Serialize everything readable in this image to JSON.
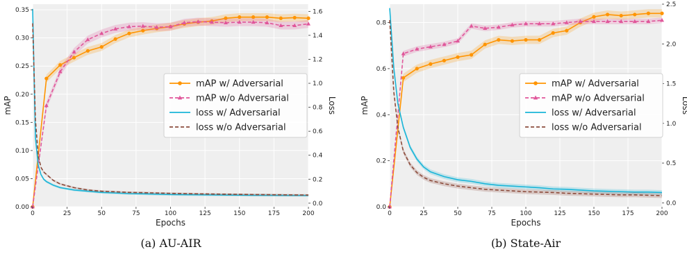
{
  "chart_data": [
    {
      "type": "line",
      "caption": "(a) AU-AIR",
      "xlabel": "Epochs",
      "ylabel": "mAP",
      "y2label": "Loss",
      "xlim": [
        0,
        200
      ],
      "ylim": [
        0,
        0.36
      ],
      "y2lim": [
        -0.03,
        1.66
      ],
      "xticks": [
        0,
        25,
        50,
        75,
        100,
        125,
        150,
        175,
        200
      ],
      "yticks": [
        0.0,
        0.05,
        0.1,
        0.15,
        0.2,
        0.25,
        0.3,
        0.35
      ],
      "ytick_labels": [
        "0.00",
        "0.05",
        "0.10",
        "0.15",
        "0.20",
        "0.25",
        "0.30",
        "0.35"
      ],
      "y2ticks": [
        0.0,
        0.2,
        0.4,
        0.6,
        0.8,
        1.0,
        1.2,
        1.4,
        1.6
      ],
      "y2tick_labels": [
        "0.0",
        "0.2",
        "0.4",
        "0.6",
        "0.8",
        "1.0",
        "1.2",
        "1.4",
        "1.6"
      ],
      "grid": true,
      "legend_position": "center-right",
      "series": [
        {
          "name": "mAP w/ Adversarial",
          "axis": "left",
          "color": "#ff9400",
          "marker": "circle",
          "style": "solid",
          "x": [
            0,
            10,
            20,
            30,
            40,
            50,
            60,
            70,
            80,
            90,
            100,
            110,
            120,
            130,
            140,
            150,
            160,
            170,
            180,
            190,
            200
          ],
          "y": [
            0.0,
            0.228,
            0.252,
            0.265,
            0.277,
            0.284,
            0.298,
            0.308,
            0.313,
            0.317,
            0.32,
            0.325,
            0.328,
            0.33,
            0.335,
            0.337,
            0.337,
            0.337,
            0.335,
            0.336,
            0.335
          ],
          "band": 0.007
        },
        {
          "name": "mAP w/o Adversarial",
          "axis": "left",
          "color": "#e0569a",
          "marker": "triangle",
          "style": "dashed",
          "x": [
            0,
            10,
            20,
            30,
            40,
            50,
            60,
            70,
            80,
            90,
            100,
            110,
            120,
            130,
            140,
            150,
            160,
            170,
            180,
            190,
            200
          ],
          "y": [
            0.0,
            0.18,
            0.24,
            0.275,
            0.297,
            0.308,
            0.316,
            0.32,
            0.321,
            0.319,
            0.32,
            0.327,
            0.329,
            0.328,
            0.327,
            0.328,
            0.328,
            0.327,
            0.322,
            0.322,
            0.325
          ],
          "band": 0.007
        },
        {
          "name": "loss w/ Adversarial",
          "axis": "right",
          "color": "#1ab5d8",
          "marker": "none",
          "style": "solid",
          "x": [
            0,
            2,
            4,
            6,
            8,
            10,
            15,
            20,
            30,
            40,
            50,
            60,
            70,
            80,
            90,
            100,
            120,
            140,
            160,
            180,
            200
          ],
          "y": [
            1.62,
            0.55,
            0.32,
            0.24,
            0.2,
            0.18,
            0.15,
            0.13,
            0.11,
            0.1,
            0.09,
            0.085,
            0.08,
            0.078,
            0.075,
            0.072,
            0.07,
            0.068,
            0.066,
            0.065,
            0.064
          ],
          "band": 0.01
        },
        {
          "name": "loss w/o Adversarial",
          "axis": "right",
          "color": "#8b4b3b",
          "marker": "none",
          "style": "dashed",
          "x": [
            0,
            2,
            4,
            6,
            8,
            10,
            15,
            20,
            30,
            40,
            50,
            60,
            70,
            80,
            90,
            100,
            120,
            140,
            160,
            180,
            200
          ],
          "y": [
            1.5,
            0.7,
            0.4,
            0.3,
            0.26,
            0.24,
            0.19,
            0.16,
            0.13,
            0.11,
            0.1,
            0.095,
            0.09,
            0.088,
            0.085,
            0.082,
            0.078,
            0.075,
            0.072,
            0.07,
            0.068
          ],
          "band": 0.008
        }
      ]
    },
    {
      "type": "line",
      "caption": "(b) State-Air",
      "xlabel": "Epochs",
      "ylabel": "mAP",
      "y2label": "Loss",
      "xlim": [
        0,
        200
      ],
      "ylim": [
        0,
        0.88
      ],
      "y2lim": [
        -0.05,
        2.5
      ],
      "xticks": [
        0,
        25,
        50,
        75,
        100,
        125,
        150,
        175,
        200
      ],
      "yticks": [
        0.0,
        0.2,
        0.4,
        0.6,
        0.8
      ],
      "ytick_labels": [
        "0.0",
        "0.2",
        "0.4",
        "0.6",
        "0.8"
      ],
      "y2ticks": [
        0.0,
        0.5,
        1.0,
        1.5,
        2.0,
        2.5
      ],
      "y2tick_labels": [
        "0.0",
        "0.5",
        "1.0",
        "1.5",
        "2.0",
        "2.5"
      ],
      "grid": true,
      "legend_position": "center-right",
      "series": [
        {
          "name": "mAP w/ Adversarial",
          "axis": "left",
          "color": "#ff9400",
          "marker": "circle",
          "style": "solid",
          "x": [
            0,
            10,
            20,
            30,
            40,
            50,
            60,
            70,
            80,
            90,
            100,
            110,
            120,
            130,
            140,
            150,
            160,
            170,
            180,
            190,
            200
          ],
          "y": [
            0.0,
            0.56,
            0.6,
            0.62,
            0.635,
            0.65,
            0.66,
            0.705,
            0.725,
            0.72,
            0.725,
            0.725,
            0.755,
            0.765,
            0.8,
            0.825,
            0.835,
            0.83,
            0.835,
            0.84,
            0.84
          ],
          "band": 0.018
        },
        {
          "name": "mAP w/o Adversarial",
          "axis": "left",
          "color": "#e0569a",
          "marker": "triangle",
          "style": "dashed",
          "x": [
            0,
            10,
            20,
            30,
            40,
            50,
            60,
            70,
            80,
            90,
            100,
            110,
            120,
            130,
            140,
            150,
            160,
            170,
            180,
            190,
            200
          ],
          "y": [
            0.0,
            0.665,
            0.685,
            0.695,
            0.705,
            0.72,
            0.785,
            0.775,
            0.78,
            0.79,
            0.795,
            0.795,
            0.795,
            0.8,
            0.805,
            0.805,
            0.805,
            0.805,
            0.805,
            0.805,
            0.81
          ],
          "band": 0.012
        },
        {
          "name": "loss w/ Adversarial",
          "axis": "right",
          "color": "#1ab5d8",
          "marker": "none",
          "style": "solid",
          "x": [
            0,
            3,
            6,
            10,
            15,
            20,
            25,
            30,
            40,
            50,
            60,
            70,
            80,
            90,
            100,
            110,
            120,
            130,
            140,
            150,
            160,
            170,
            180,
            190,
            200
          ],
          "y": [
            2.45,
            1.7,
            1.25,
            0.95,
            0.7,
            0.55,
            0.45,
            0.39,
            0.33,
            0.29,
            0.27,
            0.24,
            0.22,
            0.21,
            0.2,
            0.19,
            0.175,
            0.17,
            0.16,
            0.15,
            0.145,
            0.14,
            0.135,
            0.135,
            0.13
          ],
          "band": 0.03
        },
        {
          "name": "loss w/o Adversarial",
          "axis": "right",
          "color": "#8b4b3b",
          "marker": "none",
          "style": "dashed",
          "x": [
            0,
            3,
            6,
            10,
            15,
            20,
            25,
            30,
            40,
            50,
            60,
            70,
            80,
            90,
            100,
            110,
            120,
            130,
            140,
            150,
            160,
            170,
            180,
            190,
            200
          ],
          "y": [
            2.3,
            1.4,
            0.95,
            0.65,
            0.48,
            0.38,
            0.32,
            0.28,
            0.24,
            0.21,
            0.19,
            0.17,
            0.16,
            0.15,
            0.14,
            0.135,
            0.13,
            0.12,
            0.115,
            0.11,
            0.105,
            0.1,
            0.1,
            0.095,
            0.09
          ],
          "band": 0.03
        }
      ]
    }
  ]
}
